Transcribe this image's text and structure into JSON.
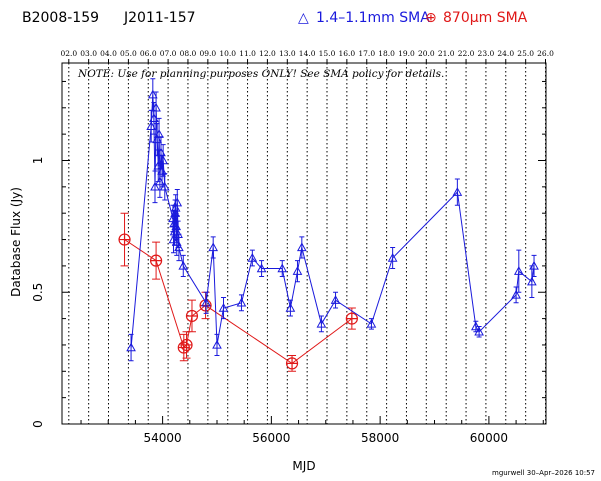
{
  "header": {
    "source_name": "B2008-159",
    "alt_name": "J2011-157",
    "legend_blue_marker": "△",
    "legend_blue_label": "1.4–1.1mm SMA",
    "legend_red_marker": "⊕",
    "legend_red_label": "870μm SMA"
  },
  "note": "NOTE: Use for planning purposes ONLY! See SMA policy for details.",
  "footer": "mgurwell 30–Apr–2026 10:57",
  "colors": {
    "blue": "#1a1adc",
    "red": "#e01818",
    "axis": "#000000"
  },
  "chart_data": {
    "type": "scatter",
    "xlabel": "MJD",
    "ylabel": "Database Flux (Jy)",
    "xlim": [
      52150,
      61050
    ],
    "ylim": [
      0,
      1.37
    ],
    "x_ticks": [
      54000,
      56000,
      58000,
      60000
    ],
    "y_ticks": [
      0,
      0.5,
      1
    ],
    "y_tick_labels": [
      "0",
      "0.5",
      "1"
    ],
    "top_axis_years": [
      {
        "label": "02.0",
        "mjd": 52275
      },
      {
        "label": "03.0",
        "mjd": 52640
      },
      {
        "label": "04.0",
        "mjd": 53005
      },
      {
        "label": "05.0",
        "mjd": 53371
      },
      {
        "label": "06.0",
        "mjd": 53736
      },
      {
        "label": "07.0",
        "mjd": 54101
      },
      {
        "label": "08.0",
        "mjd": 54466
      },
      {
        "label": "09.0",
        "mjd": 54832
      },
      {
        "label": "10.0",
        "mjd": 55197
      },
      {
        "label": "11.0",
        "mjd": 55562
      },
      {
        "label": "12.0",
        "mjd": 55927
      },
      {
        "label": "13.0",
        "mjd": 56293
      },
      {
        "label": "14.0",
        "mjd": 56658
      },
      {
        "label": "15.0",
        "mjd": 57023
      },
      {
        "label": "16.0",
        "mjd": 57388
      },
      {
        "label": "17.0",
        "mjd": 57754
      },
      {
        "label": "18.0",
        "mjd": 58119
      },
      {
        "label": "19.0",
        "mjd": 58484
      },
      {
        "label": "20.0",
        "mjd": 58849
      },
      {
        "label": "21.0",
        "mjd": 59215
      },
      {
        "label": "22.0",
        "mjd": 59580
      },
      {
        "label": "23.0",
        "mjd": 59945
      },
      {
        "label": "24.0",
        "mjd": 60310
      },
      {
        "label": "25.0",
        "mjd": 60676
      },
      {
        "label": "26.0",
        "mjd": 61041
      }
    ],
    "series": [
      {
        "name": "1.4–1.1mm SMA",
        "marker": "triangle",
        "points": [
          {
            "x": 53420,
            "y": 0.29,
            "err": 0.05
          },
          {
            "x": 53790,
            "y": 1.13,
            "err": 0.06
          },
          {
            "x": 53820,
            "y": 1.25,
            "err": 0.06
          },
          {
            "x": 53840,
            "y": 1.16,
            "err": 0.06
          },
          {
            "x": 53860,
            "y": 0.9,
            "err": 0.06
          },
          {
            "x": 53880,
            "y": 1.2,
            "err": 0.06
          },
          {
            "x": 53900,
            "y": 1.08,
            "err": 0.06
          },
          {
            "x": 53920,
            "y": 0.98,
            "err": 0.06
          },
          {
            "x": 53935,
            "y": 1.1,
            "err": 0.06
          },
          {
            "x": 53950,
            "y": 0.92,
            "err": 0.06
          },
          {
            "x": 53970,
            "y": 1.03,
            "err": 0.06
          },
          {
            "x": 53990,
            "y": 0.96,
            "err": 0.06
          },
          {
            "x": 54010,
            "y": 1.0,
            "err": 0.06
          },
          {
            "x": 54040,
            "y": 0.9,
            "err": 0.05
          },
          {
            "x": 54190,
            "y": 0.78,
            "err": 0.05
          },
          {
            "x": 54200,
            "y": 0.7,
            "err": 0.05
          },
          {
            "x": 54210,
            "y": 0.76,
            "err": 0.05
          },
          {
            "x": 54220,
            "y": 0.73,
            "err": 0.05
          },
          {
            "x": 54230,
            "y": 0.8,
            "err": 0.05
          },
          {
            "x": 54240,
            "y": 0.82,
            "err": 0.05
          },
          {
            "x": 54250,
            "y": 0.75,
            "err": 0.05
          },
          {
            "x": 54260,
            "y": 0.69,
            "err": 0.05
          },
          {
            "x": 54270,
            "y": 0.84,
            "err": 0.05
          },
          {
            "x": 54285,
            "y": 0.72,
            "err": 0.05
          },
          {
            "x": 54300,
            "y": 0.67,
            "err": 0.05
          },
          {
            "x": 54380,
            "y": 0.6,
            "err": 0.04
          },
          {
            "x": 54800,
            "y": 0.46,
            "err": 0.04
          },
          {
            "x": 54930,
            "y": 0.67,
            "err": 0.04
          },
          {
            "x": 55000,
            "y": 0.3,
            "err": 0.04
          },
          {
            "x": 55120,
            "y": 0.44,
            "err": 0.04
          },
          {
            "x": 55450,
            "y": 0.46,
            "err": 0.03
          },
          {
            "x": 55650,
            "y": 0.63,
            "err": 0.03
          },
          {
            "x": 55820,
            "y": 0.59,
            "err": 0.03
          },
          {
            "x": 56200,
            "y": 0.59,
            "err": 0.03
          },
          {
            "x": 56350,
            "y": 0.44,
            "err": 0.03
          },
          {
            "x": 56480,
            "y": 0.58,
            "err": 0.04
          },
          {
            "x": 56560,
            "y": 0.67,
            "err": 0.04
          },
          {
            "x": 56920,
            "y": 0.38,
            "err": 0.03
          },
          {
            "x": 57180,
            "y": 0.47,
            "err": 0.03
          },
          {
            "x": 57840,
            "y": 0.38,
            "err": 0.02
          },
          {
            "x": 58230,
            "y": 0.63,
            "err": 0.04
          },
          {
            "x": 59420,
            "y": 0.88,
            "err": 0.05
          },
          {
            "x": 59760,
            "y": 0.37,
            "err": 0.02
          },
          {
            "x": 59820,
            "y": 0.35,
            "err": 0.02
          },
          {
            "x": 60500,
            "y": 0.49,
            "err": 0.03
          },
          {
            "x": 60550,
            "y": 0.58,
            "err": 0.08
          },
          {
            "x": 60790,
            "y": 0.54,
            "err": 0.06
          },
          {
            "x": 60830,
            "y": 0.6,
            "err": 0.04
          }
        ]
      },
      {
        "name": "870μm SMA",
        "marker": "circle-plus",
        "points": [
          {
            "x": 53300,
            "y": 0.7,
            "err": 0.1
          },
          {
            "x": 53880,
            "y": 0.62,
            "err": 0.07
          },
          {
            "x": 54390,
            "y": 0.29,
            "err": 0.05
          },
          {
            "x": 54440,
            "y": 0.3,
            "err": 0.05
          },
          {
            "x": 54540,
            "y": 0.41,
            "err": 0.06
          },
          {
            "x": 54790,
            "y": 0.45,
            "err": 0.05
          },
          {
            "x": 56380,
            "y": 0.23,
            "err": 0.03
          },
          {
            "x": 57480,
            "y": 0.4,
            "err": 0.04
          }
        ]
      }
    ]
  }
}
